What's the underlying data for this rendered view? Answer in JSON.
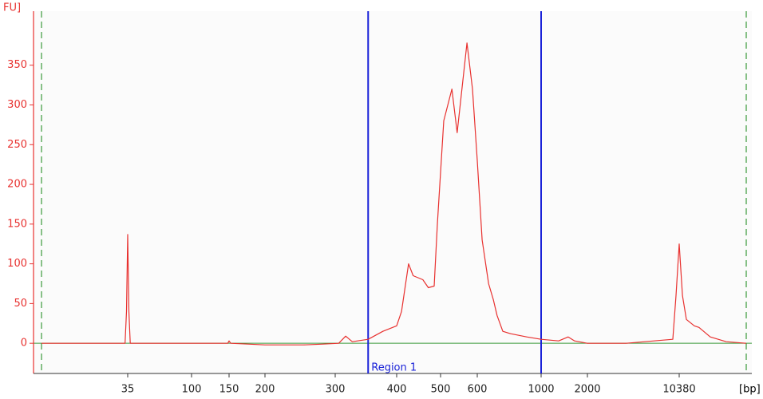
{
  "chart_data": {
    "type": "line",
    "x_label": "[bp]",
    "y_label": "FU]",
    "x": [
      8.5,
      20,
      33.5,
      34.3,
      35,
      35.7,
      36.5,
      60,
      100,
      148,
      150,
      152,
      200,
      250,
      280,
      305,
      315,
      325,
      350,
      375,
      400,
      410,
      425,
      435,
      457,
      470,
      484,
      492,
      508,
      529,
      543,
      570,
      586,
      600,
      624,
      657,
      682,
      703,
      736,
      784,
      891,
      1000,
      1300,
      1500,
      1650,
      2000,
      4000,
      9250,
      9800,
      10380,
      11000,
      11800,
      13600,
      14800,
      18100,
      24100,
      34500
    ],
    "series": [
      {
        "color": "#e8312f",
        "values": [
          0,
          0,
          0,
          40,
          137,
          40,
          0,
          0,
          0,
          0,
          3,
          0,
          -2,
          -2,
          -1,
          0,
          9,
          2,
          5,
          15,
          22,
          40,
          100,
          85,
          80,
          70,
          72,
          150,
          280,
          320,
          265,
          378,
          320,
          230,
          130,
          75,
          55,
          35,
          15,
          12,
          8,
          5,
          3,
          8,
          3,
          0,
          0,
          5,
          60,
          125,
          60,
          30,
          22,
          20,
          8,
          2,
          0
        ]
      }
    ],
    "xlim": [
      8.5,
      34500
    ],
    "xticks": [
      35,
      100,
      150,
      200,
      300,
      400,
      500,
      600,
      1000,
      2000,
      10380
    ],
    "ylim": [
      -38,
      418
    ],
    "yticks": [
      0,
      50,
      100,
      150,
      200,
      250,
      300,
      350
    ],
    "regions": [
      {
        "label": "Region 1",
        "start": 350,
        "end": 1000,
        "color": "#1a22d8"
      }
    ],
    "baseline_color": "#3a9a3a",
    "marker_line_color": "#3a9a3a",
    "axis_color": "#e8312f"
  }
}
